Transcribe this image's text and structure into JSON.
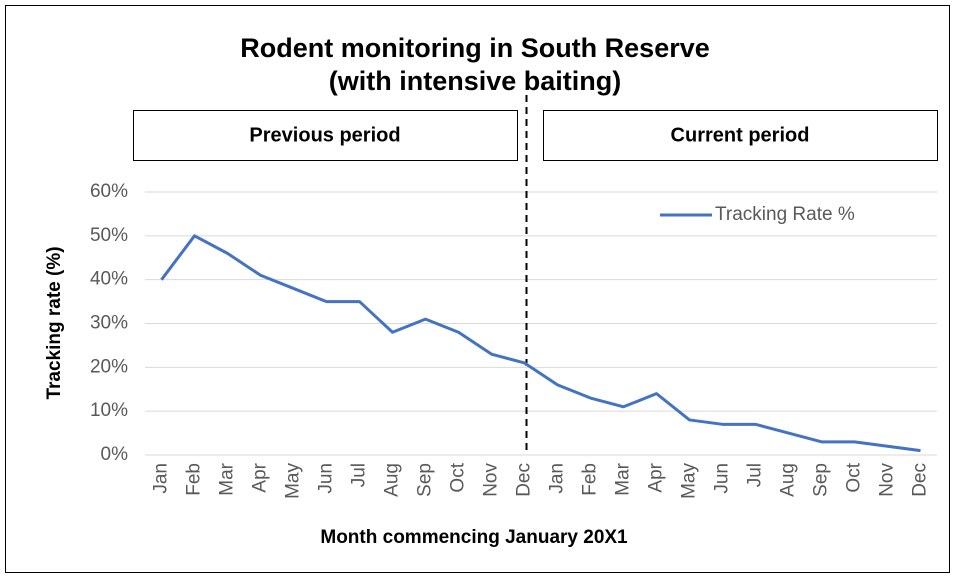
{
  "chart_data": {
    "type": "line",
    "title": [
      "Rodent monitoring in South Reserve",
      "(with intensive baiting)"
    ],
    "annotations": [
      "Previous period",
      "Current period"
    ],
    "x_label": "Month commencing January 20X1",
    "y_label": "Tracking rate (%)",
    "categories": [
      "Jan",
      "Feb",
      "Mar",
      "Apr",
      "May",
      "Jun",
      "Jul",
      "Aug",
      "Sep",
      "Oct",
      "Nov",
      "Dec",
      "Jan",
      "Feb",
      "Mar",
      "Apr",
      "May",
      "Jun",
      "Jul",
      "Aug",
      "Sep",
      "Oct",
      "Nov",
      "Dec"
    ],
    "series": [
      {
        "name": "Tracking Rate %",
        "color": "#4472c4",
        "values": [
          40,
          50,
          46,
          41,
          38,
          35,
          35,
          28,
          31,
          28,
          23,
          21,
          16,
          13,
          11,
          14,
          8,
          7,
          7,
          5,
          3,
          3,
          2,
          1
        ]
      }
    ],
    "ylim": [
      0,
      60
    ],
    "yticks": [
      {
        "value": 0,
        "label": "0%"
      },
      {
        "value": 10,
        "label": "10%"
      },
      {
        "value": 20,
        "label": "20%"
      },
      {
        "value": 30,
        "label": "30%"
      },
      {
        "value": 40,
        "label": "40%"
      },
      {
        "value": 50,
        "label": "50%"
      },
      {
        "value": 60,
        "label": "60%"
      }
    ],
    "grid": true,
    "legend": "upper right"
  }
}
